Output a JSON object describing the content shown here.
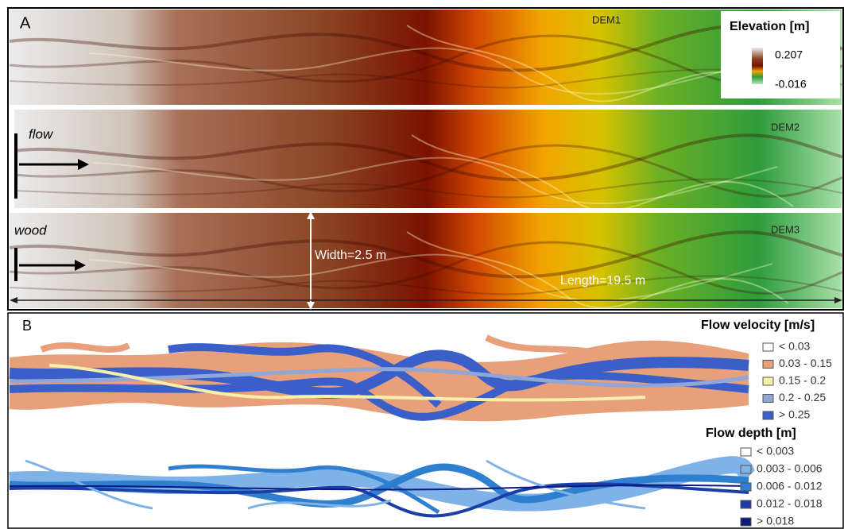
{
  "panel_a": {
    "label": "A",
    "strips": [
      "DEM1",
      "DEM2",
      "DEM3"
    ],
    "legend": {
      "title": "Elevation [m]",
      "max": "0.207",
      "min": "-0.016"
    },
    "annotations": {
      "flow": "flow",
      "wood": "wood",
      "width": "Width=2.5 m",
      "length": "Length=19.5 m"
    }
  },
  "panel_b": {
    "label": "B",
    "velocity_legend": {
      "title": "Flow velocity [m/s]",
      "items": [
        {
          "label": "< 0.03",
          "color": "#ffffff"
        },
        {
          "label": "0.03 - 0.15",
          "color": "#e8a07a"
        },
        {
          "label": "0.15 - 0.2",
          "color": "#f6f0a8"
        },
        {
          "label": "0.2 - 0.25",
          "color": "#8fa6d6"
        },
        {
          "label": "> 0.25",
          "color": "#3a5fc8"
        }
      ]
    },
    "depth_legend": {
      "title": "Flow depth [m]",
      "items": [
        {
          "label": "< 0.003",
          "color": "#ffffff"
        },
        {
          "label": "0.003 - 0.006",
          "color": "#7fb2e6"
        },
        {
          "label": "0.006 - 0.012",
          "color": "#2f7fd0"
        },
        {
          "label": "0.012 - 0.018",
          "color": "#1a3fa8"
        },
        {
          "label": "> 0.018",
          "color": "#0a1a80"
        }
      ]
    }
  }
}
